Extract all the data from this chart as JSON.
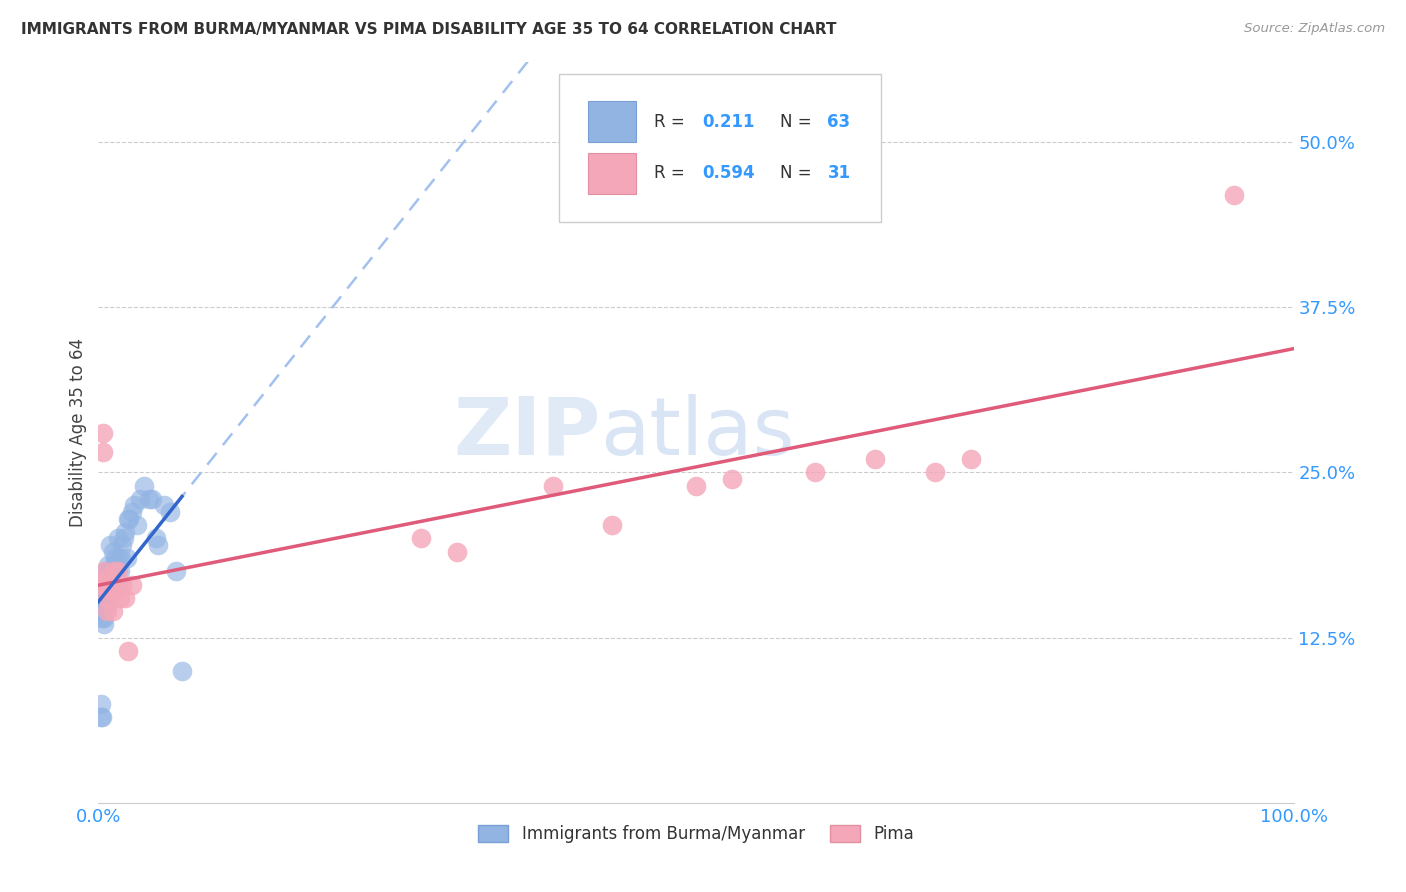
{
  "title": "IMMIGRANTS FROM BURMA/MYANMAR VS PIMA DISABILITY AGE 35 TO 64 CORRELATION CHART",
  "source": "Source: ZipAtlas.com",
  "ylabel": "Disability Age 35 to 64",
  "legend_label1": "Immigrants from Burma/Myanmar",
  "legend_label2": "Pima",
  "r1": 0.211,
  "n1": 63,
  "r2": 0.594,
  "n2": 31,
  "color1": "#92b4e3",
  "color2": "#f4a7b9",
  "line1_color": "#3366cc",
  "line2_color": "#e05a7a",
  "dashed_line_color": "#99bbee",
  "background_color": "#ffffff",
  "grid_color": "#cccccc",
  "xlim": [
    0.0,
    1.0
  ],
  "ylim": [
    0.0,
    0.56
  ],
  "x_ticks": [
    0.0,
    0.25,
    0.5,
    0.75,
    1.0
  ],
  "x_tick_labels": [
    "0.0%",
    "",
    "",
    "",
    "100.0%"
  ],
  "y_ticks": [
    0.125,
    0.25,
    0.375,
    0.5
  ],
  "y_tick_labels": [
    "12.5%",
    "25.0%",
    "37.5%",
    "50.0%"
  ],
  "blue_x": [
    0.002,
    0.002,
    0.003,
    0.003,
    0.003,
    0.004,
    0.004,
    0.004,
    0.004,
    0.005,
    0.005,
    0.005,
    0.005,
    0.005,
    0.005,
    0.005,
    0.005,
    0.005,
    0.006,
    0.006,
    0.006,
    0.006,
    0.007,
    0.007,
    0.007,
    0.008,
    0.008,
    0.008,
    0.009,
    0.009,
    0.01,
    0.01,
    0.01,
    0.011,
    0.012,
    0.012,
    0.013,
    0.014,
    0.015,
    0.016,
    0.016,
    0.017,
    0.018,
    0.019,
    0.02,
    0.021,
    0.022,
    0.024,
    0.025,
    0.026,
    0.028,
    0.03,
    0.032,
    0.035,
    0.038,
    0.042,
    0.045,
    0.048,
    0.05,
    0.055,
    0.06,
    0.065,
    0.07
  ],
  "blue_y": [
    0.075,
    0.065,
    0.15,
    0.14,
    0.065,
    0.155,
    0.15,
    0.145,
    0.145,
    0.155,
    0.17,
    0.16,
    0.155,
    0.15,
    0.148,
    0.145,
    0.14,
    0.135,
    0.175,
    0.165,
    0.155,
    0.15,
    0.165,
    0.155,
    0.15,
    0.18,
    0.165,
    0.155,
    0.175,
    0.16,
    0.195,
    0.175,
    0.155,
    0.17,
    0.19,
    0.175,
    0.18,
    0.185,
    0.175,
    0.2,
    0.165,
    0.185,
    0.175,
    0.185,
    0.195,
    0.2,
    0.205,
    0.185,
    0.215,
    0.215,
    0.22,
    0.225,
    0.21,
    0.23,
    0.24,
    0.23,
    0.23,
    0.2,
    0.195,
    0.225,
    0.22,
    0.175,
    0.1
  ],
  "pink_x": [
    0.003,
    0.004,
    0.004,
    0.005,
    0.005,
    0.006,
    0.007,
    0.007,
    0.008,
    0.009,
    0.01,
    0.012,
    0.013,
    0.015,
    0.016,
    0.018,
    0.02,
    0.022,
    0.025,
    0.028,
    0.27,
    0.3,
    0.38,
    0.43,
    0.5,
    0.53,
    0.6,
    0.65,
    0.7,
    0.73,
    0.95
  ],
  "pink_y": [
    0.165,
    0.28,
    0.265,
    0.175,
    0.165,
    0.17,
    0.155,
    0.145,
    0.165,
    0.16,
    0.165,
    0.145,
    0.175,
    0.16,
    0.175,
    0.155,
    0.165,
    0.155,
    0.115,
    0.165,
    0.2,
    0.19,
    0.24,
    0.21,
    0.24,
    0.245,
    0.25,
    0.26,
    0.25,
    0.26,
    0.46
  ],
  "watermark_zip": "ZIP",
  "watermark_atlas": "atlas"
}
